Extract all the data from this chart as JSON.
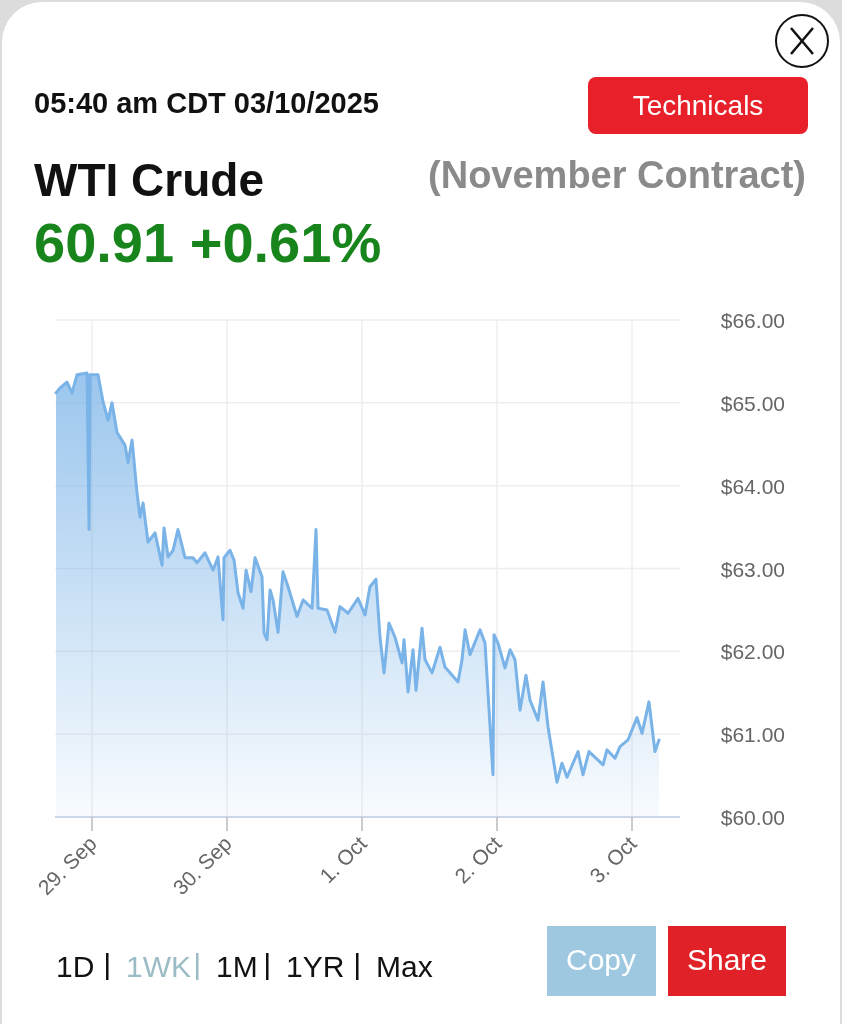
{
  "chart_data": {
    "type": "area",
    "title": "WTI Crude",
    "subtitle": "(November Contract)",
    "annotations": [
      "05:40 am CDT 03/10/2025",
      "60.91 +0.61%",
      "Technicals",
      "1D",
      "1WK",
      "1M",
      "1YR",
      "Max",
      "Copy",
      "Share"
    ],
    "x": [
      "2025-09-28T17:36",
      "2025-09-28T18:19",
      "2025-09-28T19:33",
      "2025-09-28T20:27",
      "2025-09-28T21:20",
      "2025-09-28T23:07",
      "2025-09-28T23:28",
      "2025-09-28T23:39",
      "2025-09-29T01:04",
      "2025-09-29T01:58",
      "2025-09-29T02:51",
      "2025-09-29T03:33",
      "2025-09-29T04:27",
      "2025-09-29T05:52",
      "2025-09-29T06:24",
      "2025-09-29T07:07",
      "2025-09-29T08:00",
      "2025-09-29T08:32",
      "2025-09-29T09:04",
      "2025-09-29T09:57",
      "2025-09-29T11:12",
      "2025-09-29T12:27",
      "2025-09-29T12:48",
      "2025-09-29T13:31",
      "2025-09-29T14:24",
      "2025-09-29T15:17",
      "2025-09-29T16:32",
      "2025-09-29T17:57",
      "2025-09-29T18:40",
      "2025-09-29T20:05",
      "2025-09-29T21:31",
      "2025-09-29T22:24",
      "2025-09-29T23:17",
      "2025-09-29T23:28",
      "2025-09-30T00:32",
      "2025-09-30T01:15",
      "2025-09-30T01:57",
      "2025-09-30T02:51",
      "2025-09-30T03:23",
      "2025-09-30T04:16",
      "2025-09-30T04:59",
      "2025-09-30T06:13",
      "2025-09-30T06:35",
      "2025-09-30T07:07",
      "2025-09-30T07:39",
      "2025-09-30T08:11",
      "2025-09-30T09:04",
      "2025-09-30T09:57",
      "2025-09-30T10:51",
      "2025-09-30T12:27",
      "2025-09-30T13:31",
      "2025-09-30T15:07",
      "2025-09-30T15:49",
      "2025-09-30T16:11",
      "2025-09-30T17:47",
      "2025-09-30T19:12",
      "2025-09-30T20:05",
      "2025-09-30T21:31",
      "2025-09-30T23:17",
      "2025-10-01T00:32",
      "2025-10-01T01:25",
      "2025-10-01T02:29",
      "2025-10-01T03:12",
      "2025-10-01T03:55",
      "2025-10-01T04:48",
      "2025-10-01T05:52",
      "2025-10-01T07:07",
      "2025-10-01T07:28",
      "2025-10-01T08:11",
      "2025-10-01T09:04",
      "2025-10-01T09:36",
      "2025-10-01T10:40",
      "2025-10-01T11:12",
      "2025-10-01T12:27",
      "2025-10-01T13:52",
      "2025-10-01T14:45",
      "2025-10-01T17:04",
      "2025-10-01T17:47",
      "2025-10-01T18:19",
      "2025-10-01T19:12",
      "2025-10-01T20:59",
      "2025-10-01T21:52",
      "2025-10-01T23:17",
      "2025-10-01T23:28",
      "2025-10-02T00:11",
      "2025-10-02T01:25",
      "2025-10-02T02:19",
      "2025-10-02T03:12",
      "2025-10-02T04:05",
      "2025-10-02T05:09",
      "2025-10-02T05:52",
      "2025-10-02T07:17",
      "2025-10-02T08:11",
      "2025-10-02T09:04",
      "2025-10-02T10:40",
      "2025-10-02T11:33",
      "2025-10-02T12:27",
      "2025-10-02T14:24",
      "2025-10-02T15:17",
      "2025-10-02T16:21",
      "2025-10-02T18:51",
      "2025-10-02T19:33",
      "2025-10-02T20:59",
      "2025-10-02T21:52",
      "2025-10-02T23:17",
      "2025-10-03T00:53",
      "2025-10-03T01:47",
      "2025-10-03T03:01",
      "2025-10-03T04:05",
      "2025-10-03T04:48"
    ],
    "series": [
      {
        "color": "#7ab3e8",
        "values": [
          65.12,
          65.18,
          65.25,
          65.12,
          65.34,
          65.36,
          63.47,
          65.34,
          65.34,
          65.01,
          64.79,
          65.0,
          64.64,
          64.49,
          64.28,
          64.55,
          63.91,
          63.62,
          63.79,
          63.32,
          63.43,
          63.04,
          63.49,
          63.14,
          63.22,
          63.47,
          63.13,
          63.13,
          63.07,
          63.19,
          62.98,
          63.14,
          62.38,
          63.13,
          63.22,
          63.1,
          62.71,
          62.52,
          62.98,
          62.72,
          63.13,
          62.9,
          62.22,
          62.14,
          62.74,
          62.62,
          62.23,
          62.96,
          62.78,
          62.42,
          62.62,
          62.52,
          63.47,
          62.52,
          62.5,
          62.23,
          62.54,
          62.46,
          62.64,
          62.44,
          62.78,
          62.87,
          62.17,
          61.74,
          62.34,
          62.17,
          61.86,
          62.14,
          61.51,
          62.02,
          61.53,
          62.28,
          61.9,
          61.74,
          62.05,
          61.81,
          61.63,
          61.9,
          62.26,
          61.96,
          62.26,
          62.1,
          60.51,
          62.2,
          62.1,
          61.8,
          62.02,
          61.9,
          61.29,
          61.71,
          61.41,
          61.17,
          61.63,
          61.09,
          60.42,
          60.65,
          60.48,
          60.79,
          60.51,
          60.79,
          60.63,
          60.81,
          60.71,
          60.85,
          60.93,
          61.2,
          61.01,
          61.39,
          60.79,
          60.93
        ]
      }
    ],
    "xlim": [
      "2025-09-28T17:25",
      "2025-10-03T08:32"
    ],
    "xticks": [
      {
        "value": "2025-09-29",
        "label": "29. Sep"
      },
      {
        "value": "2025-09-30",
        "label": "30. Sep"
      },
      {
        "value": "2025-10-01",
        "label": "1. Oct"
      },
      {
        "value": "2025-10-02",
        "label": "2. Oct"
      },
      {
        "value": "2025-10-03",
        "label": "3. Oct"
      }
    ],
    "ylim": [
      60,
      66
    ],
    "yticks": [
      {
        "value": 60,
        "label": "$60.00"
      },
      {
        "value": 61,
        "label": "$61.00"
      },
      {
        "value": 62,
        "label": "$62.00"
      },
      {
        "value": 63,
        "label": "$63.00"
      },
      {
        "value": 64,
        "label": "$64.00"
      },
      {
        "value": 65,
        "label": "$65.00"
      },
      {
        "value": 66,
        "label": "$66.00"
      }
    ],
    "grid": true,
    "marker": "none",
    "line_style": "solid"
  }
}
